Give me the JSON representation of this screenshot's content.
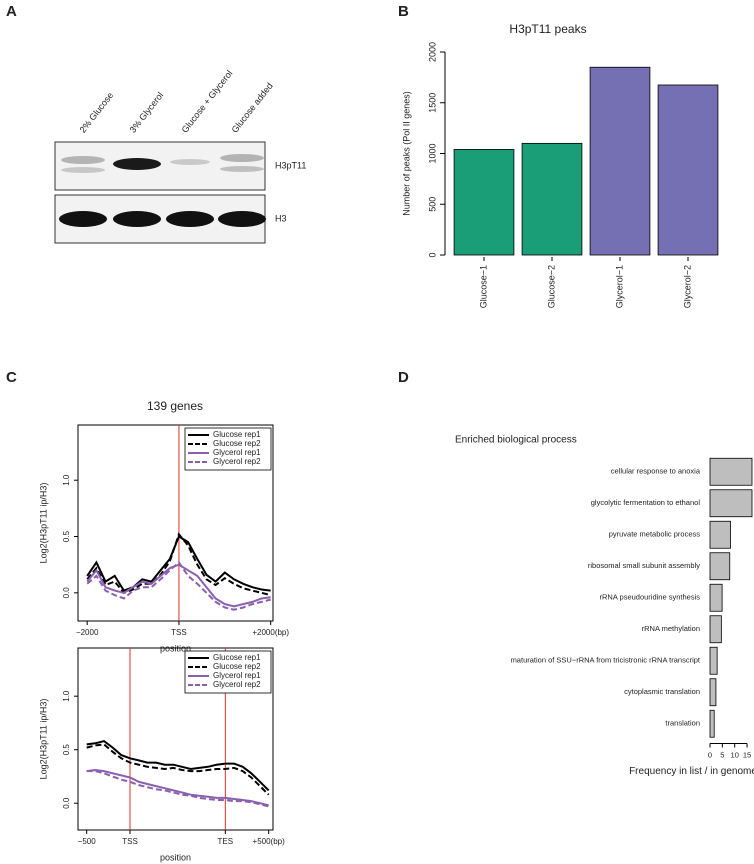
{
  "panels": [
    "A",
    "B",
    "C",
    "D"
  ],
  "blot": {
    "lanes": [
      "2% Glucose",
      "3% Glycerol",
      "Glucose + Glycerol",
      "Glucose added"
    ],
    "rows": [
      "H3pT11",
      "H3"
    ]
  },
  "chart_data": [
    {
      "type": "bar",
      "title": "H3pT11 peaks",
      "ylabel": "Number of peaks (Pol II genes)",
      "categories": [
        "Glucose−1",
        "Glucose−2",
        "Glycerol−1",
        "Glycerol−2"
      ],
      "values": [
        1040,
        1100,
        1850,
        1675
      ],
      "colors": [
        "#1a9e77",
        "#1a9e77",
        "#7570b3",
        "#7570b3"
      ],
      "ylim": [
        0,
        2000
      ],
      "yticks": [
        0,
        500,
        1000,
        1500,
        2000
      ]
    },
    {
      "type": "line",
      "title": "139 genes",
      "ylabel": "Log2(H3pT11 ip/H3)",
      "xlabel": "position",
      "x": [
        -2000,
        -1800,
        -1600,
        -1400,
        -1200,
        -1000,
        -800,
        -600,
        -400,
        -200,
        0,
        200,
        400,
        600,
        800,
        1000,
        1200,
        1400,
        1600,
        1800,
        2000
      ],
      "series": [
        {
          "name": "Glucose rep1",
          "color": "#000000",
          "dashed": false,
          "values": [
            0.15,
            0.27,
            0.1,
            0.15,
            0.02,
            0.05,
            0.12,
            0.1,
            0.2,
            0.3,
            0.5,
            0.45,
            0.3,
            0.16,
            0.1,
            0.18,
            0.12,
            0.08,
            0.05,
            0.03,
            0.02
          ]
        },
        {
          "name": "Glucose rep2",
          "color": "#000000",
          "dashed": true,
          "values": [
            0.12,
            0.22,
            0.07,
            0.1,
            0.0,
            0.03,
            0.08,
            0.08,
            0.16,
            0.28,
            0.52,
            0.42,
            0.25,
            0.12,
            0.07,
            0.13,
            0.08,
            0.04,
            0.02,
            0.0,
            -0.02
          ]
        },
        {
          "name": "Glycerol rep1",
          "color": "#8a5fb0",
          "dashed": false,
          "values": [
            0.1,
            0.2,
            0.05,
            0.02,
            0.0,
            0.05,
            0.1,
            0.08,
            0.15,
            0.22,
            0.25,
            0.2,
            0.15,
            0.05,
            -0.05,
            -0.1,
            -0.12,
            -0.1,
            -0.08,
            -0.05,
            -0.04
          ]
        },
        {
          "name": "Glycerol rep2",
          "color": "#8a5fb0",
          "dashed": true,
          "values": [
            0.08,
            0.15,
            0.02,
            -0.02,
            -0.05,
            0.02,
            0.05,
            0.05,
            0.12,
            0.2,
            0.27,
            0.15,
            0.08,
            0.0,
            -0.08,
            -0.13,
            -0.15,
            -0.13,
            -0.1,
            -0.08,
            -0.06
          ]
        }
      ],
      "xlim": [
        -2200,
        2050
      ],
      "xticks": [
        {
          "value": -2000,
          "label": "−2000"
        },
        {
          "value": 0,
          "label": "TSS"
        },
        {
          "value": 2000,
          "label": "+2000(bp)"
        }
      ],
      "ylim": [
        -0.25,
        1.49
      ],
      "yticks": [
        {
          "value": 0,
          "label": "0.0"
        },
        {
          "value": 0.5,
          "label": "0.5"
        },
        {
          "value": 1,
          "label": "1.0"
        }
      ],
      "vlines": [
        0
      ],
      "vline_color": "#e0302a",
      "legend": "topright"
    },
    {
      "type": "line",
      "ylabel": "Log2(H3pT11 ip/H3)",
      "xlabel": "position",
      "x": [
        -500,
        -400,
        -300,
        -200,
        -100,
        0,
        100,
        200,
        300,
        400,
        500,
        600,
        700,
        800,
        900,
        1000,
        1100,
        1200,
        1300,
        1400,
        1500,
        1600
      ],
      "series": [
        {
          "name": "Glucose rep1",
          "color": "#000000",
          "dashed": false,
          "values": [
            0.55,
            0.56,
            0.58,
            0.52,
            0.45,
            0.42,
            0.4,
            0.38,
            0.38,
            0.36,
            0.36,
            0.34,
            0.32,
            0.33,
            0.34,
            0.36,
            0.37,
            0.37,
            0.34,
            0.28,
            0.2,
            0.12
          ]
        },
        {
          "name": "Glucose rep2",
          "color": "#000000",
          "dashed": true,
          "values": [
            0.52,
            0.54,
            0.55,
            0.48,
            0.42,
            0.38,
            0.36,
            0.34,
            0.33,
            0.32,
            0.33,
            0.31,
            0.3,
            0.3,
            0.31,
            0.32,
            0.32,
            0.33,
            0.3,
            0.24,
            0.16,
            0.08
          ]
        },
        {
          "name": "Glycerol rep1",
          "color": "#8a5fb0",
          "dashed": false,
          "values": [
            0.3,
            0.31,
            0.3,
            0.28,
            0.26,
            0.24,
            0.2,
            0.18,
            0.16,
            0.14,
            0.12,
            0.1,
            0.08,
            0.07,
            0.06,
            0.05,
            0.05,
            0.04,
            0.03,
            0.02,
            0.0,
            -0.02
          ]
        },
        {
          "name": "Glycerol rep2",
          "color": "#8a5fb0",
          "dashed": true,
          "values": [
            0.3,
            0.3,
            0.28,
            0.25,
            0.22,
            0.2,
            0.17,
            0.15,
            0.13,
            0.12,
            0.1,
            0.08,
            0.07,
            0.05,
            0.04,
            0.03,
            0.03,
            0.02,
            0.02,
            0.01,
            -0.01,
            -0.03
          ]
        }
      ],
      "xlim": [
        -600,
        1650
      ],
      "xticks": [
        {
          "value": -500,
          "label": "−500"
        },
        {
          "value": 0,
          "label": "TSS"
        },
        {
          "value": 1100,
          "label": "TES"
        },
        {
          "value": 1600,
          "label": "+500(bp)"
        }
      ],
      "ylim": [
        -0.25,
        1.45
      ],
      "yticks": [
        {
          "value": 0,
          "label": "0.0"
        },
        {
          "value": 0.5,
          "label": "0.5"
        },
        {
          "value": 1,
          "label": "1.0"
        }
      ],
      "vlines": [
        0,
        1100
      ],
      "vline_color": "#e0302a",
      "legend": "topright"
    },
    {
      "type": "barh",
      "title": "Enriched biological process",
      "xlabel": "Frequency in list / in genome",
      "categories": [
        "cellular response to anoxia",
        "glycolytic fermentation to ethanol",
        "pyruvate metabolic process",
        "ribosomal small subunit assembly",
        "rRNA pseudouridine synthesis",
        "rRNA methylation",
        "maturation of SSU−rRNA from tricistronic rRNA transcript",
        "cytoplasmic translation",
        "translation"
      ],
      "values": [
        17,
        17,
        8.3,
        8.0,
        4.9,
        4.6,
        2.9,
        2.4,
        1.7
      ],
      "color": "#bebebe",
      "xlim": [
        0,
        17
      ],
      "xticks": [
        0,
        5,
        10,
        15
      ]
    }
  ]
}
